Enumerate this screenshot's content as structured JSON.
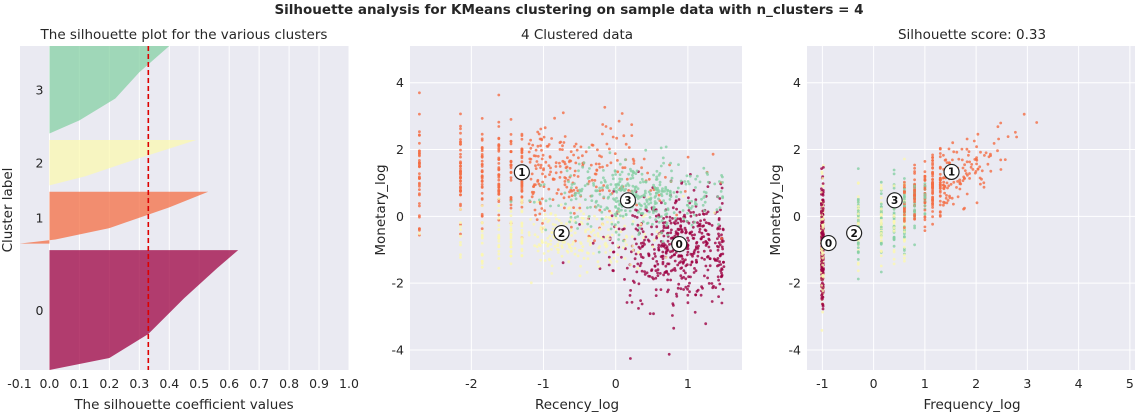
{
  "figure": {
    "suptitle": "Silhouette analysis for KMeans clustering on sample data with n_clusters = 4"
  },
  "colors": {
    "panel_bg": "#eaeaf2",
    "grid": "#ffffff",
    "text": "#262626",
    "cluster_0": "#9e0142",
    "cluster_1": "#f46d43",
    "cluster_2": "#fbf8b0",
    "cluster_3": "#86d0a4",
    "avg_line": "#dd0000"
  },
  "chart_data": [
    {
      "type": "area",
      "title": "The silhouette plot for the various clusters",
      "xlabel": "The silhouette coefficient values",
      "ylabel": "Cluster label",
      "xlim": [
        -0.1,
        1.0
      ],
      "ylim": [
        0,
        100
      ],
      "xticks": [
        "-0.1",
        "0.0",
        "0.1",
        "0.2",
        "0.3",
        "0.4",
        "0.5",
        "0.6",
        "0.7",
        "0.8",
        "0.9",
        "1.0"
      ],
      "xtick_values": [
        -0.1,
        0.0,
        0.1,
        0.2,
        0.3,
        0.4,
        0.5,
        0.6,
        0.7,
        0.8,
        0.9,
        1.0
      ],
      "avg_silhouette": 0.33,
      "clusters": [
        {
          "label": "0",
          "band": [
            0,
            37
          ],
          "profile": [
            [
              0,
              0.0
            ],
            [
              0.1,
              0.2
            ],
            [
              0.3,
              0.33
            ],
            [
              0.6,
              0.45
            ],
            [
              0.85,
              0.56
            ],
            [
              1,
              0.63
            ]
          ]
        },
        {
          "label": "1",
          "band": [
            39,
            55
          ],
          "profile": [
            [
              0,
              -0.1
            ],
            [
              0.08,
              0.02
            ],
            [
              0.3,
              0.2
            ],
            [
              0.7,
              0.4
            ],
            [
              1,
              0.53
            ]
          ]
        },
        {
          "label": "2",
          "band": [
            57,
            71
          ],
          "profile": [
            [
              0,
              0.0
            ],
            [
              0.2,
              0.12
            ],
            [
              0.6,
              0.3
            ],
            [
              1,
              0.49
            ]
          ]
        },
        {
          "label": "3",
          "band": [
            73,
            100
          ],
          "profile": [
            [
              0,
              0.0
            ],
            [
              0.15,
              0.1
            ],
            [
              0.4,
              0.22
            ],
            [
              0.7,
              0.3
            ],
            [
              1,
              0.4
            ]
          ]
        }
      ]
    },
    {
      "type": "scatter",
      "title": "4 Clustered data",
      "xlabel": "Recency_log",
      "ylabel": "Monetary_log",
      "xlim": [
        -2.85,
        1.75
      ],
      "ylim": [
        -4.6,
        5.1
      ],
      "xticks": [
        "-2",
        "-1",
        "0",
        "1"
      ],
      "xtick_values": [
        -2,
        -1,
        0,
        1
      ],
      "yticks": [
        "-4",
        "-2",
        "0",
        "2",
        "4"
      ],
      "ytick_values": [
        -4,
        -2,
        0,
        2,
        4
      ],
      "centers": [
        {
          "label": "0",
          "x": 0.88,
          "y": -0.83
        },
        {
          "label": "1",
          "x": -1.3,
          "y": 1.32
        },
        {
          "label": "2",
          "x": -0.75,
          "y": -0.5
        },
        {
          "label": "3",
          "x": 0.17,
          "y": 0.48
        }
      ],
      "cluster_regions": [
        {
          "cluster": "0",
          "x_mean": 0.9,
          "x_sd": 0.45,
          "y_mean": -0.9,
          "y_sd": 0.8,
          "n": 500
        },
        {
          "cluster": "1",
          "x_mean": -1.2,
          "x_sd": 0.9,
          "y_mean": 1.3,
          "y_sd": 0.8,
          "n": 480
        },
        {
          "cluster": "2",
          "x_mean": -0.8,
          "x_sd": 0.7,
          "y_mean": -0.6,
          "y_sd": 0.5,
          "n": 300
        },
        {
          "cluster": "3",
          "x_mean": 0.3,
          "x_sd": 0.6,
          "y_mean": 0.6,
          "y_sd": 0.55,
          "n": 380
        }
      ]
    },
    {
      "type": "scatter",
      "title": "Silhouette score: 0.33",
      "xlabel": "Frequency_log",
      "ylabel": "Monetary_log",
      "xlim": [
        -1.3,
        5.1
      ],
      "ylim": [
        -4.6,
        5.1
      ],
      "xticks": [
        "-1",
        "0",
        "1",
        "2",
        "3",
        "4",
        "5"
      ],
      "xtick_values": [
        -1,
        0,
        1,
        2,
        3,
        4,
        5
      ],
      "yticks": [
        "-4",
        "-2",
        "0",
        "2",
        "4"
      ],
      "ytick_values": [
        -4,
        -2,
        0,
        2,
        4
      ],
      "centers": [
        {
          "label": "0",
          "x": -0.88,
          "y": -0.8
        },
        {
          "label": "1",
          "x": 1.52,
          "y": 1.33
        },
        {
          "label": "2",
          "x": -0.38,
          "y": -0.5
        },
        {
          "label": "3",
          "x": 0.41,
          "y": 0.48
        }
      ],
      "frequency_levels": [
        -1.0,
        -0.3,
        0.15,
        0.4,
        0.6,
        0.8,
        1.0,
        1.15,
        1.3
      ]
    }
  ]
}
